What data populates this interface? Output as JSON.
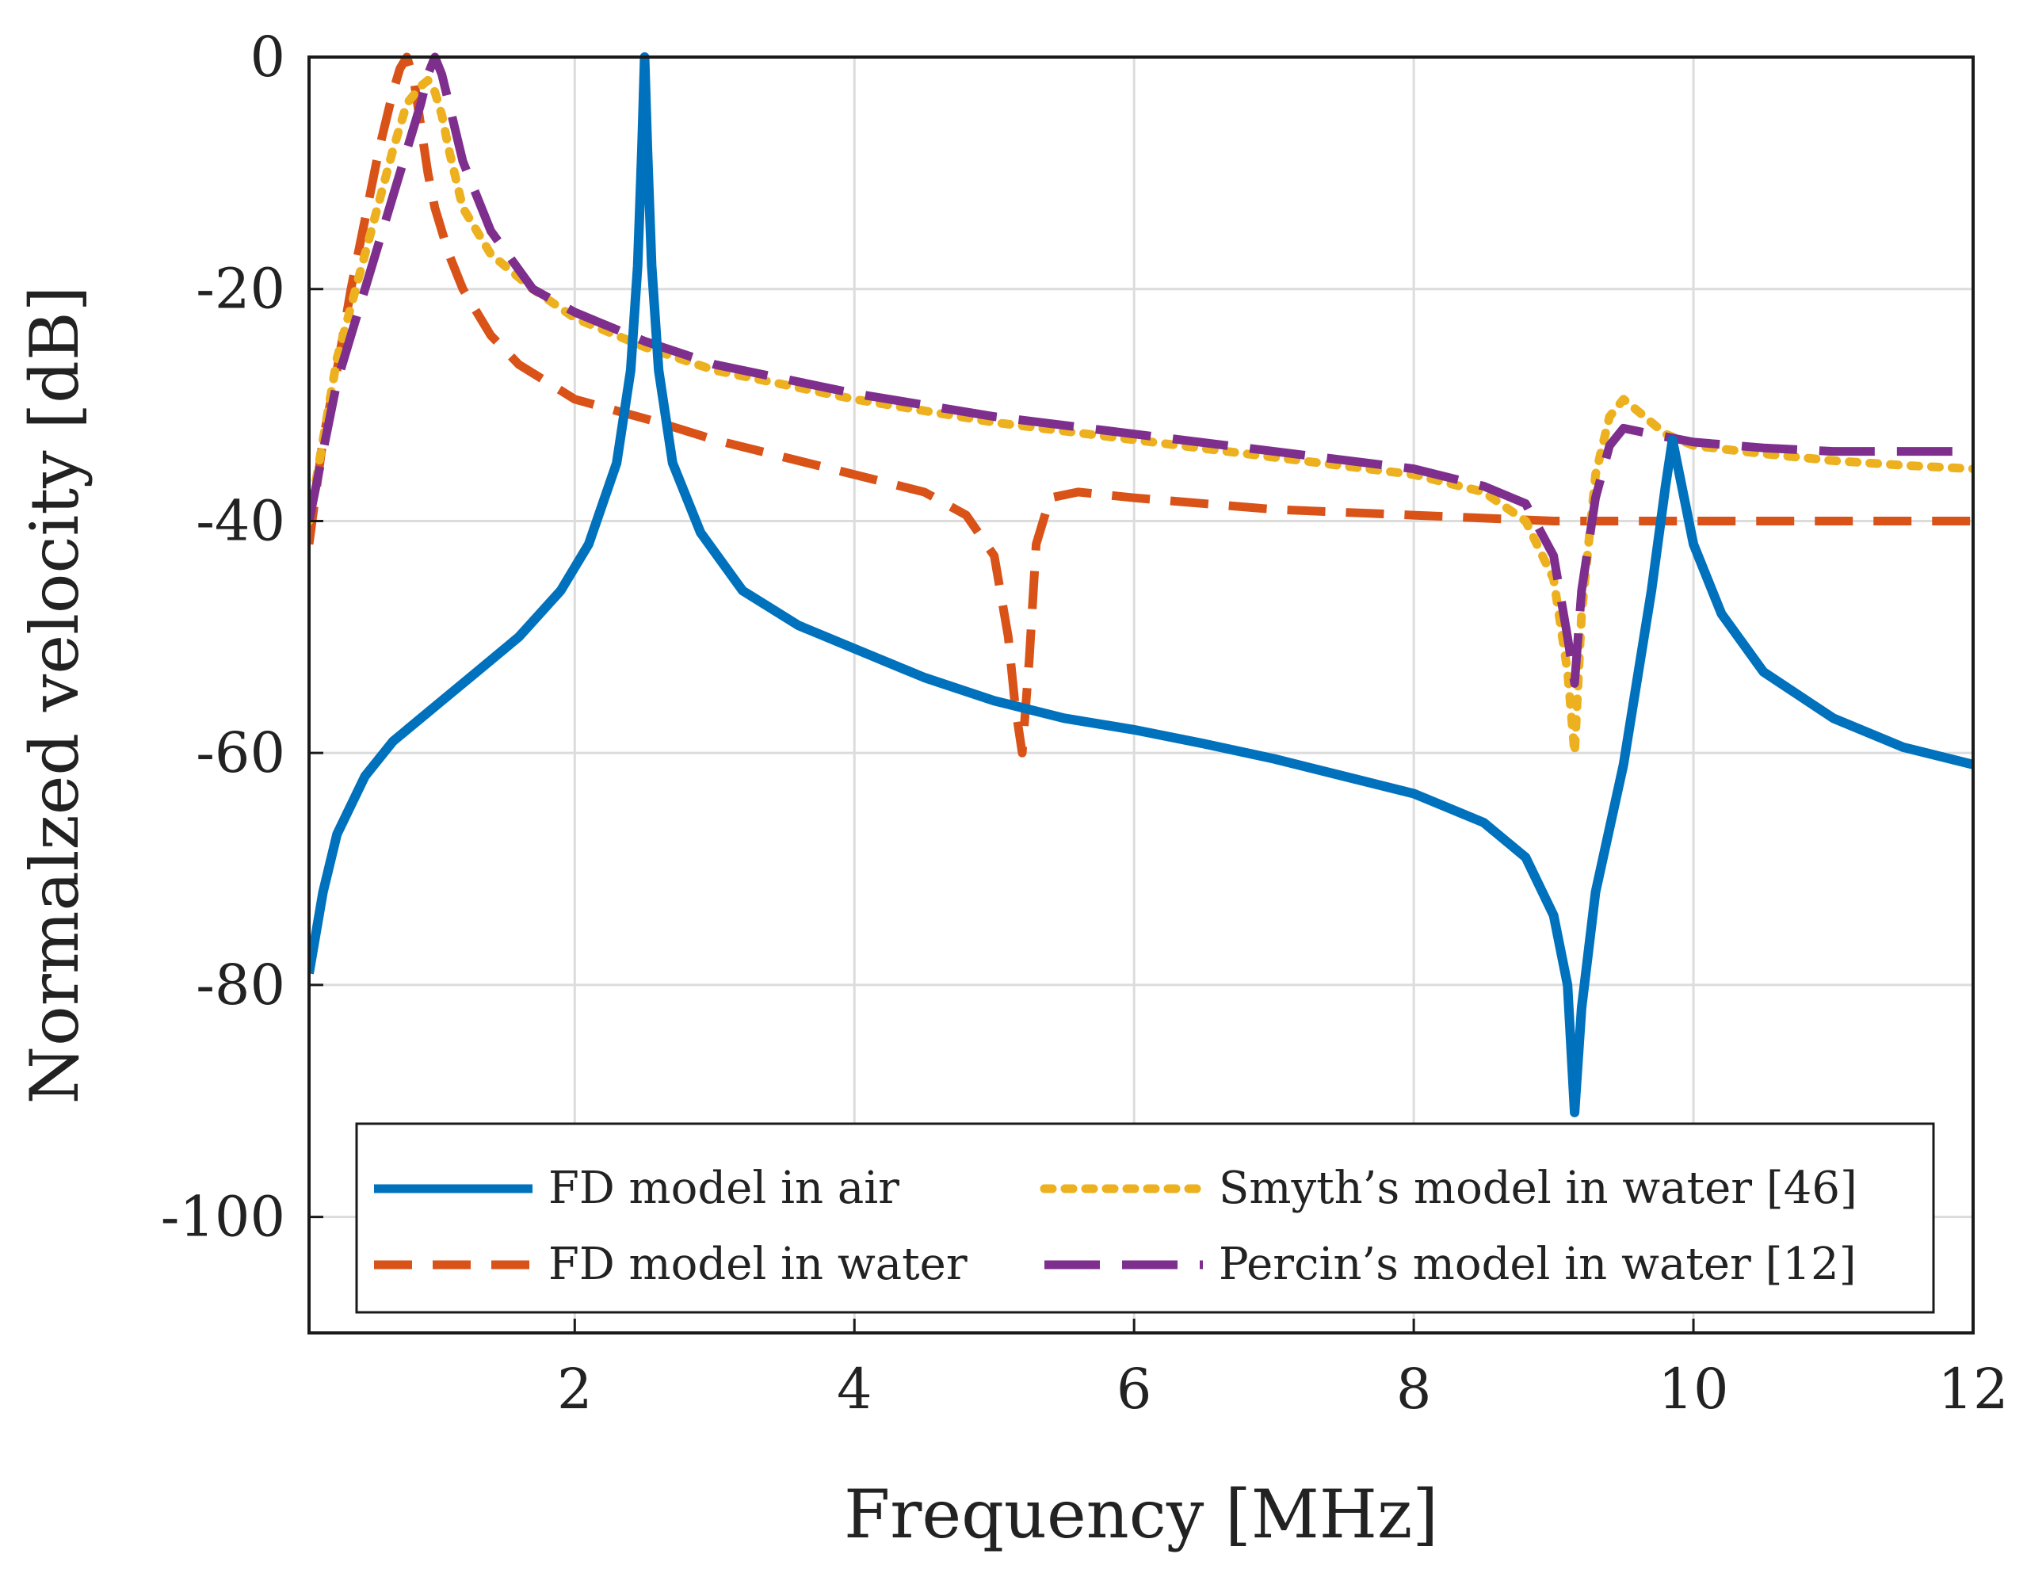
{
  "chart_data": {
    "type": "line",
    "title": "",
    "xlabel": "Frequency [MHz]",
    "ylabel": "Normalzed velocity [dB]",
    "xlim": [
      0.1,
      12
    ],
    "ylim": [
      -110,
      0
    ],
    "xticks": [
      2,
      4,
      6,
      8,
      10,
      12
    ],
    "xtick_labels": [
      "2",
      "4",
      "6",
      "8",
      "10",
      "12"
    ],
    "yticks": [
      0,
      -20,
      -40,
      -60,
      -80,
      -100
    ],
    "ytick_labels": [
      "0",
      "-20",
      "-40",
      "-60",
      "-80",
      "-100"
    ],
    "grid": true,
    "legend_position": "bottom-right",
    "series": [
      {
        "name": "FD model in air",
        "color": "#0072BD",
        "style": "solid",
        "x": [
          0.1,
          0.2,
          0.3,
          0.5,
          0.7,
          1.0,
          1.3,
          1.6,
          1.9,
          2.1,
          2.3,
          2.4,
          2.45,
          2.48,
          2.5,
          2.52,
          2.55,
          2.6,
          2.7,
          2.9,
          3.2,
          3.6,
          4.0,
          4.5,
          5.0,
          5.5,
          6.0,
          6.5,
          7.0,
          7.5,
          8.0,
          8.5,
          8.8,
          9.0,
          9.1,
          9.15,
          9.2,
          9.3,
          9.5,
          9.7,
          9.8,
          9.85,
          9.9,
          10.0,
          10.2,
          10.5,
          11.0,
          11.5,
          12.0
        ],
        "values": [
          -79,
          -72,
          -67,
          -62,
          -59,
          -56,
          -53,
          -50,
          -46,
          -42,
          -35,
          -27,
          -18,
          -8,
          0,
          -8,
          -18,
          -27,
          -35,
          -41,
          -46,
          -49,
          -51,
          -53.5,
          -55.5,
          -57,
          -58,
          -59.2,
          -60.5,
          -62,
          -63.5,
          -66,
          -69,
          -74,
          -80,
          -91,
          -82,
          -72,
          -61,
          -46,
          -37,
          -33,
          -36,
          -42,
          -48,
          -53,
          -57,
          -59.5,
          -61
        ]
      },
      {
        "name": "FD model in water",
        "color": "#D95319",
        "style": "dashed",
        "x": [
          0.1,
          0.2,
          0.3,
          0.4,
          0.5,
          0.6,
          0.7,
          0.75,
          0.8,
          0.85,
          0.9,
          0.95,
          1.0,
          1.1,
          1.2,
          1.4,
          1.6,
          1.8,
          2.0,
          2.3,
          2.6,
          3.0,
          3.5,
          4.0,
          4.5,
          4.8,
          5.0,
          5.1,
          5.15,
          5.2,
          5.25,
          5.3,
          5.4,
          5.6,
          6.0,
          7.0,
          8.0,
          9.0,
          10.0,
          11.0,
          12.0
        ],
        "values": [
          -42,
          -33,
          -27,
          -20,
          -14,
          -8,
          -3,
          -1,
          0,
          -2,
          -6,
          -10,
          -13,
          -17,
          -20,
          -24,
          -26.5,
          -28,
          -29.5,
          -30.5,
          -31.5,
          -33,
          -34.5,
          -36,
          -37.5,
          -39.5,
          -43,
          -50,
          -56,
          -60,
          -52,
          -42,
          -38,
          -37.5,
          -38,
          -39,
          -39.5,
          -40,
          -40,
          -40,
          -40
        ]
      },
      {
        "name": "Smyth’s model in water [46]",
        "color": "#EDB120",
        "style": "dotted",
        "x": [
          0.1,
          0.3,
          0.5,
          0.7,
          0.8,
          0.9,
          0.95,
          1.0,
          1.05,
          1.1,
          1.2,
          1.4,
          1.7,
          2.0,
          2.5,
          3.0,
          4.0,
          5.0,
          6.0,
          7.0,
          8.0,
          8.5,
          8.8,
          9.0,
          9.1,
          9.15,
          9.2,
          9.3,
          9.4,
          9.5,
          9.6,
          9.8,
          10.0,
          10.5,
          11.0,
          11.5,
          12.0
        ],
        "values": [
          -40,
          -26,
          -17,
          -8,
          -4,
          -2.5,
          -2,
          -3,
          -5,
          -8,
          -13,
          -17,
          -20,
          -22.5,
          -25,
          -27,
          -29.5,
          -31.5,
          -33,
          -34.5,
          -36,
          -37.5,
          -40,
          -45,
          -53,
          -60,
          -48,
          -36,
          -31,
          -29.5,
          -30.5,
          -32.5,
          -33.5,
          -34.2,
          -34.8,
          -35.2,
          -35.5
        ]
      },
      {
        "name": "Percin’s model in water [12]",
        "color": "#7E2F8E",
        "style": "longdash",
        "x": [
          0.1,
          0.3,
          0.5,
          0.7,
          0.8,
          0.9,
          0.95,
          1.0,
          1.05,
          1.1,
          1.2,
          1.4,
          1.7,
          2.0,
          2.5,
          3.0,
          4.0,
          5.0,
          6.0,
          7.0,
          8.0,
          8.5,
          8.8,
          9.0,
          9.1,
          9.15,
          9.2,
          9.3,
          9.4,
          9.5,
          9.7,
          10.0,
          10.5,
          11.0,
          12.0
        ],
        "values": [
          -40,
          -28,
          -20,
          -12,
          -8,
          -4,
          -1.5,
          0,
          -1.5,
          -4,
          -9,
          -15,
          -20,
          -22,
          -24.5,
          -26.5,
          -29,
          -31,
          -32.5,
          -34,
          -35.5,
          -37,
          -38.5,
          -43,
          -50,
          -54,
          -46,
          -38,
          -33.5,
          -32,
          -32.5,
          -33.2,
          -33.7,
          -34,
          -34
        ]
      }
    ]
  }
}
